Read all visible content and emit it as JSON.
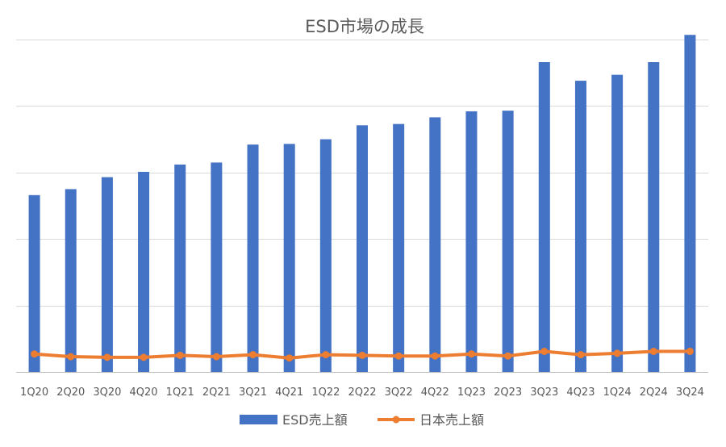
{
  "chart_data": {
    "type": "bar",
    "title": "ESD市場の成長",
    "categories": [
      "1Q20",
      "2Q20",
      "3Q20",
      "4Q20",
      "1Q21",
      "2Q21",
      "3Q21",
      "4Q21",
      "1Q22",
      "2Q22",
      "3Q22",
      "4Q22",
      "1Q23",
      "2Q23",
      "3Q23",
      "4Q23",
      "1Q24",
      "2Q24",
      "3Q24"
    ],
    "series": [
      {
        "name": "ESD売上額",
        "kind": "bar",
        "color": "#4472C4",
        "values": [
          2.66,
          2.75,
          2.93,
          3.01,
          3.12,
          3.15,
          3.42,
          3.43,
          3.5,
          3.71,
          3.73,
          3.83,
          3.92,
          3.93,
          4.66,
          4.38,
          4.47,
          4.66,
          5.07
        ]
      },
      {
        "name": "日本売上額",
        "kind": "line",
        "color": "#ED7D31",
        "values": [
          0.27,
          0.23,
          0.22,
          0.22,
          0.25,
          0.23,
          0.26,
          0.21,
          0.26,
          0.25,
          0.24,
          0.24,
          0.27,
          0.24,
          0.31,
          0.26,
          0.28,
          0.31,
          0.31
        ]
      }
    ],
    "ylim": [
      0,
      5
    ],
    "ytick_count": 5,
    "y_tick_labels_visible": false,
    "grid": true,
    "legend": "bottom-center"
  }
}
